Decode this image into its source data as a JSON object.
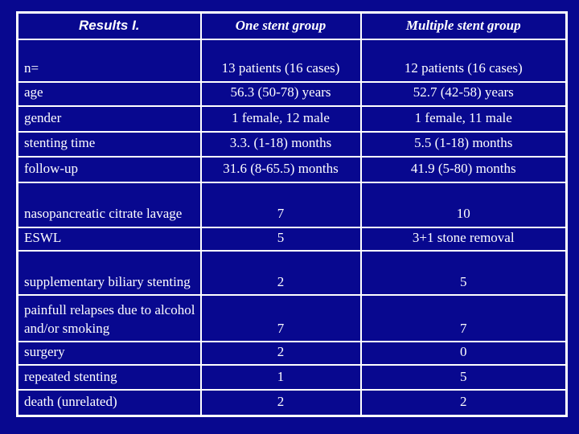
{
  "page": {
    "background_color": "#08088F",
    "border_color": "#FFFFFF",
    "title_color": "#9CC7F7",
    "text_color": "#FFFFFF"
  },
  "table": {
    "header": {
      "title": "Results I.",
      "col_one": "One stent group",
      "col_multiple": "Multiple stent group"
    },
    "rows": [
      {
        "label": "n=",
        "one": "13 patients (16 cases)",
        "multiple": "12 patients (16 cases)"
      },
      {
        "label": "age",
        "one": "56.3 (50-78) years",
        "multiple": "52.7 (42-58) years"
      },
      {
        "label": "gender",
        "one": "1 female, 12 male",
        "multiple": "1 female, 11 male"
      },
      {
        "label": "stenting time",
        "one": "3.3. (1-18) months",
        "multiple": "5.5 (1-18) months"
      },
      {
        "label": "follow-up",
        "one": "31.6 (8-65.5) months",
        "multiple": "41.9 (5-80) months"
      },
      {
        "label": "nasopancreatic citrate lavage",
        "one": "7",
        "multiple": "10"
      },
      {
        "label": "ESWL",
        "one": "5",
        "multiple": "3+1 stone removal"
      },
      {
        "label": "supplementary biliary stenting",
        "one": "2",
        "multiple": "5"
      },
      {
        "label": "painfull relapses due to alcohol and/or smoking",
        "one": "7",
        "multiple": "7"
      },
      {
        "label": "surgery",
        "one": "2",
        "multiple": "0"
      },
      {
        "label": "repeated stenting",
        "one": "1",
        "multiple": "5"
      },
      {
        "label": "death (unrelated)",
        "one": "2",
        "multiple": "2"
      }
    ]
  }
}
